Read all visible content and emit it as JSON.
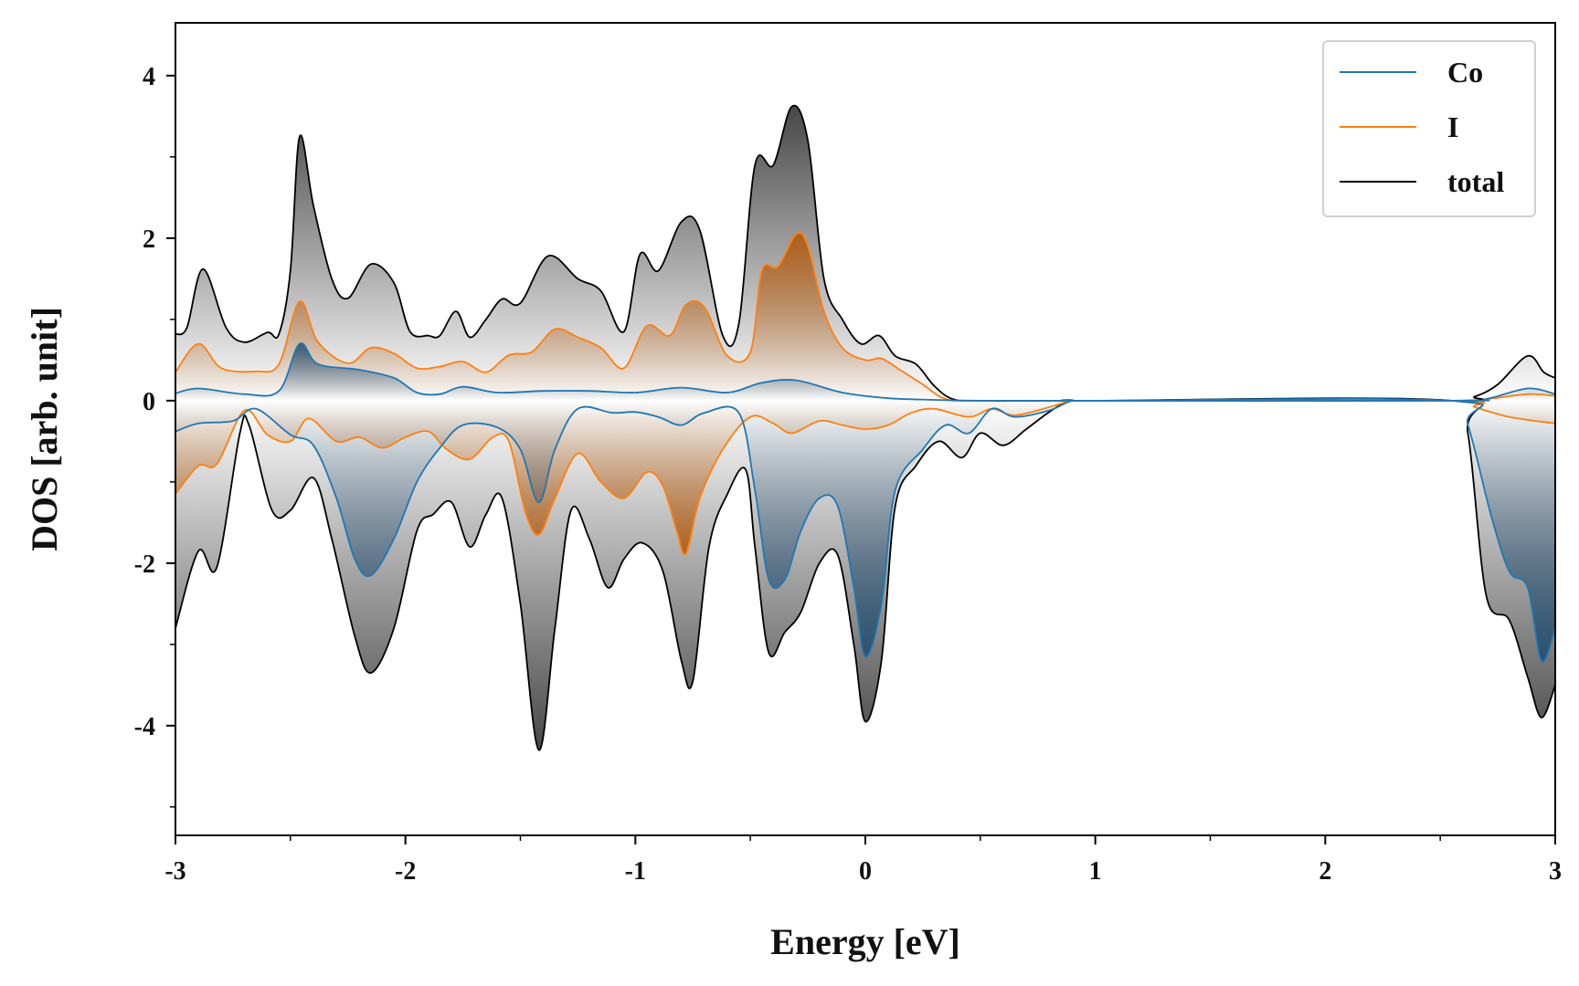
{
  "chart_data": {
    "type": "area",
    "title": "",
    "xlabel": "Energy [eV]",
    "ylabel": "DOS [arb. unit]",
    "xlim": [
      -3,
      3
    ],
    "ylim": [
      -5.35,
      4.65
    ],
    "xticks": [
      -3,
      -2,
      -1,
      0,
      1,
      2,
      3
    ],
    "xtick_labels": [
      "-3",
      "-2",
      "-1",
      "0",
      "1",
      "2",
      "3"
    ],
    "yticks": [
      -4,
      -2,
      0,
      2,
      4
    ],
    "ytick_labels": [
      "-4",
      "-2",
      "0",
      "2",
      "4"
    ],
    "grid": false,
    "legend": {
      "position": "top-right",
      "entries": [
        "Co",
        "I",
        "total"
      ]
    },
    "series": [
      {
        "name": "Co",
        "color": "#1f77b4",
        "fill_color": "#1e4a6e",
        "up": [
          [
            -3,
            0.09
          ],
          [
            -2.9,
            0.15
          ],
          [
            -2.7,
            0.08
          ],
          [
            -2.55,
            0.12
          ],
          [
            -2.46,
            0.7
          ],
          [
            -2.38,
            0.45
          ],
          [
            -2.2,
            0.38
          ],
          [
            -2.05,
            0.28
          ],
          [
            -1.95,
            0.1
          ],
          [
            -1.85,
            0.08
          ],
          [
            -1.75,
            0.17
          ],
          [
            -1.6,
            0.1
          ],
          [
            -1.4,
            0.12
          ],
          [
            -1.2,
            0.12
          ],
          [
            -1.0,
            0.1
          ],
          [
            -0.8,
            0.16
          ],
          [
            -0.6,
            0.1
          ],
          [
            -0.45,
            0.22
          ],
          [
            -0.3,
            0.25
          ],
          [
            -0.1,
            0.1
          ],
          [
            0.1,
            0.03
          ],
          [
            0.3,
            0.01
          ],
          [
            0.5,
            0.0
          ],
          [
            1.0,
            0.0
          ],
          [
            2.55,
            0.0
          ],
          [
            2.7,
            0.02
          ],
          [
            2.88,
            0.15
          ],
          [
            3,
            0.08
          ]
        ],
        "down": [
          [
            -3,
            -0.38
          ],
          [
            -2.9,
            -0.28
          ],
          [
            -2.75,
            -0.25
          ],
          [
            -2.65,
            -0.1
          ],
          [
            -2.5,
            -0.42
          ],
          [
            -2.4,
            -0.55
          ],
          [
            -2.3,
            -1.2
          ],
          [
            -2.22,
            -1.95
          ],
          [
            -2.15,
            -2.15
          ],
          [
            -2.05,
            -1.7
          ],
          [
            -1.95,
            -1.0
          ],
          [
            -1.85,
            -0.58
          ],
          [
            -1.75,
            -0.3
          ],
          [
            -1.6,
            -0.33
          ],
          [
            -1.5,
            -0.6
          ],
          [
            -1.42,
            -1.25
          ],
          [
            -1.35,
            -0.6
          ],
          [
            -1.25,
            -0.1
          ],
          [
            -1.1,
            -0.15
          ],
          [
            -1.0,
            -0.14
          ],
          [
            -0.9,
            -0.2
          ],
          [
            -0.8,
            -0.3
          ],
          [
            -0.7,
            -0.15
          ],
          [
            -0.55,
            -0.15
          ],
          [
            -0.48,
            -1.1
          ],
          [
            -0.42,
            -2.2
          ],
          [
            -0.35,
            -2.2
          ],
          [
            -0.28,
            -1.6
          ],
          [
            -0.2,
            -1.2
          ],
          [
            -0.12,
            -1.3
          ],
          [
            -0.05,
            -2.3
          ],
          [
            0.0,
            -3.15
          ],
          [
            0.07,
            -2.5
          ],
          [
            0.13,
            -1.1
          ],
          [
            0.25,
            -0.6
          ],
          [
            0.35,
            -0.3
          ],
          [
            0.45,
            -0.4
          ],
          [
            0.55,
            -0.1
          ],
          [
            0.65,
            -0.2
          ],
          [
            0.8,
            -0.12
          ],
          [
            0.9,
            0.0
          ],
          [
            1.0,
            0.0
          ],
          [
            2.55,
            0.0
          ],
          [
            2.62,
            -0.3
          ],
          [
            2.72,
            -1.4
          ],
          [
            2.8,
            -2.1
          ],
          [
            2.88,
            -2.3
          ],
          [
            2.94,
            -3.2
          ],
          [
            3,
            -2.8
          ]
        ]
      },
      {
        "name": "I",
        "color": "#ff7f0e",
        "fill_color": "#b35606",
        "up": [
          [
            -3,
            0.35
          ],
          [
            -2.9,
            0.7
          ],
          [
            -2.8,
            0.4
          ],
          [
            -2.65,
            0.36
          ],
          [
            -2.55,
            0.45
          ],
          [
            -2.46,
            1.22
          ],
          [
            -2.38,
            0.72
          ],
          [
            -2.25,
            0.46
          ],
          [
            -2.15,
            0.65
          ],
          [
            -2.05,
            0.58
          ],
          [
            -1.95,
            0.4
          ],
          [
            -1.85,
            0.42
          ],
          [
            -1.75,
            0.48
          ],
          [
            -1.65,
            0.35
          ],
          [
            -1.55,
            0.56
          ],
          [
            -1.45,
            0.6
          ],
          [
            -1.35,
            0.88
          ],
          [
            -1.25,
            0.78
          ],
          [
            -1.15,
            0.65
          ],
          [
            -1.05,
            0.4
          ],
          [
            -0.95,
            0.92
          ],
          [
            -0.85,
            0.8
          ],
          [
            -0.78,
            1.18
          ],
          [
            -0.7,
            1.15
          ],
          [
            -0.6,
            0.55
          ],
          [
            -0.5,
            0.6
          ],
          [
            -0.45,
            1.6
          ],
          [
            -0.38,
            1.65
          ],
          [
            -0.3,
            2.05
          ],
          [
            -0.25,
            1.9
          ],
          [
            -0.18,
            1.1
          ],
          [
            -0.1,
            0.65
          ],
          [
            0.0,
            0.5
          ],
          [
            0.07,
            0.52
          ],
          [
            0.15,
            0.38
          ],
          [
            0.25,
            0.2
          ],
          [
            0.35,
            0.02
          ],
          [
            0.5,
            0.0
          ],
          [
            1.0,
            0.0
          ],
          [
            2.55,
            0.0
          ],
          [
            2.7,
            0.02
          ],
          [
            2.88,
            0.08
          ],
          [
            3,
            0.06
          ]
        ],
        "down": [
          [
            -3,
            -1.15
          ],
          [
            -2.9,
            -0.8
          ],
          [
            -2.82,
            -0.78
          ],
          [
            -2.7,
            -0.12
          ],
          [
            -2.6,
            -0.42
          ],
          [
            -2.5,
            -0.5
          ],
          [
            -2.42,
            -0.22
          ],
          [
            -2.3,
            -0.5
          ],
          [
            -2.2,
            -0.45
          ],
          [
            -2.1,
            -0.58
          ],
          [
            -2.0,
            -0.45
          ],
          [
            -1.9,
            -0.38
          ],
          [
            -1.82,
            -0.6
          ],
          [
            -1.72,
            -0.72
          ],
          [
            -1.62,
            -0.45
          ],
          [
            -1.55,
            -0.5
          ],
          [
            -1.48,
            -1.35
          ],
          [
            -1.42,
            -1.65
          ],
          [
            -1.35,
            -1.2
          ],
          [
            -1.25,
            -0.65
          ],
          [
            -1.15,
            -1.0
          ],
          [
            -1.05,
            -1.2
          ],
          [
            -0.95,
            -0.88
          ],
          [
            -0.88,
            -1.05
          ],
          [
            -0.82,
            -1.6
          ],
          [
            -0.78,
            -1.88
          ],
          [
            -0.72,
            -1.2
          ],
          [
            -0.62,
            -0.6
          ],
          [
            -0.5,
            -0.2
          ],
          [
            -0.4,
            -0.28
          ],
          [
            -0.32,
            -0.4
          ],
          [
            -0.2,
            -0.25
          ],
          [
            -0.1,
            -0.3
          ],
          [
            0.0,
            -0.35
          ],
          [
            0.1,
            -0.3
          ],
          [
            0.2,
            -0.15
          ],
          [
            0.3,
            -0.1
          ],
          [
            0.45,
            -0.2
          ],
          [
            0.55,
            -0.1
          ],
          [
            0.65,
            -0.18
          ],
          [
            0.8,
            -0.08
          ],
          [
            0.9,
            0.0
          ],
          [
            1.0,
            0.0
          ],
          [
            2.55,
            0.0
          ],
          [
            2.65,
            -0.08
          ],
          [
            2.8,
            -0.2
          ],
          [
            3,
            -0.28
          ]
        ]
      },
      {
        "name": "total",
        "color": "#000000",
        "fill_color": "#333333",
        "up": [
          [
            -3,
            0.82
          ],
          [
            -2.95,
            0.9
          ],
          [
            -2.88,
            1.62
          ],
          [
            -2.78,
            0.9
          ],
          [
            -2.7,
            0.72
          ],
          [
            -2.6,
            0.84
          ],
          [
            -2.55,
            0.82
          ],
          [
            -2.5,
            1.6
          ],
          [
            -2.46,
            3.25
          ],
          [
            -2.4,
            2.4
          ],
          [
            -2.32,
            1.5
          ],
          [
            -2.25,
            1.26
          ],
          [
            -2.15,
            1.68
          ],
          [
            -2.05,
            1.45
          ],
          [
            -1.98,
            0.85
          ],
          [
            -1.9,
            0.8
          ],
          [
            -1.85,
            0.8
          ],
          [
            -1.78,
            1.1
          ],
          [
            -1.72,
            0.78
          ],
          [
            -1.65,
            1.0
          ],
          [
            -1.58,
            1.25
          ],
          [
            -1.5,
            1.2
          ],
          [
            -1.38,
            1.78
          ],
          [
            -1.25,
            1.5
          ],
          [
            -1.15,
            1.35
          ],
          [
            -1.05,
            0.85
          ],
          [
            -0.98,
            1.8
          ],
          [
            -0.9,
            1.6
          ],
          [
            -0.8,
            2.2
          ],
          [
            -0.72,
            2.1
          ],
          [
            -0.62,
            0.8
          ],
          [
            -0.55,
            0.95
          ],
          [
            -0.48,
            2.9
          ],
          [
            -0.4,
            2.9
          ],
          [
            -0.32,
            3.62
          ],
          [
            -0.25,
            3.2
          ],
          [
            -0.18,
            1.5
          ],
          [
            -0.1,
            1.0
          ],
          [
            -0.02,
            0.7
          ],
          [
            0.06,
            0.8
          ],
          [
            0.13,
            0.55
          ],
          [
            0.22,
            0.45
          ],
          [
            0.3,
            0.18
          ],
          [
            0.38,
            0.02
          ],
          [
            0.5,
            0.0
          ],
          [
            1.0,
            0.0
          ],
          [
            2.55,
            0.0
          ],
          [
            2.65,
            0.05
          ],
          [
            2.75,
            0.2
          ],
          [
            2.88,
            0.55
          ],
          [
            2.95,
            0.35
          ],
          [
            3,
            0.28
          ]
        ],
        "down": [
          [
            -3,
            -2.8
          ],
          [
            -2.9,
            -1.85
          ],
          [
            -2.82,
            -2.05
          ],
          [
            -2.72,
            -0.4
          ],
          [
            -2.68,
            -0.3
          ],
          [
            -2.58,
            -1.35
          ],
          [
            -2.5,
            -1.35
          ],
          [
            -2.4,
            -0.95
          ],
          [
            -2.32,
            -1.7
          ],
          [
            -2.22,
            -2.9
          ],
          [
            -2.15,
            -3.35
          ],
          [
            -2.05,
            -2.8
          ],
          [
            -1.95,
            -1.6
          ],
          [
            -1.88,
            -1.4
          ],
          [
            -1.8,
            -1.25
          ],
          [
            -1.72,
            -1.8
          ],
          [
            -1.65,
            -1.4
          ],
          [
            -1.58,
            -1.2
          ],
          [
            -1.5,
            -2.5
          ],
          [
            -1.42,
            -4.3
          ],
          [
            -1.35,
            -2.8
          ],
          [
            -1.28,
            -1.35
          ],
          [
            -1.2,
            -1.7
          ],
          [
            -1.12,
            -2.3
          ],
          [
            -1.05,
            -1.95
          ],
          [
            -0.97,
            -1.75
          ],
          [
            -0.88,
            -2.1
          ],
          [
            -0.8,
            -3.2
          ],
          [
            -0.75,
            -3.45
          ],
          [
            -0.68,
            -1.8
          ],
          [
            -0.6,
            -1.15
          ],
          [
            -0.52,
            -0.85
          ],
          [
            -0.48,
            -1.8
          ],
          [
            -0.42,
            -3.1
          ],
          [
            -0.35,
            -2.85
          ],
          [
            -0.28,
            -2.6
          ],
          [
            -0.2,
            -2.0
          ],
          [
            -0.12,
            -1.9
          ],
          [
            -0.05,
            -3.0
          ],
          [
            0.0,
            -3.95
          ],
          [
            0.07,
            -3.2
          ],
          [
            0.13,
            -1.3
          ],
          [
            0.22,
            -0.8
          ],
          [
            0.32,
            -0.5
          ],
          [
            0.42,
            -0.7
          ],
          [
            0.5,
            -0.4
          ],
          [
            0.6,
            -0.55
          ],
          [
            0.7,
            -0.35
          ],
          [
            0.82,
            -0.1
          ],
          [
            0.9,
            0.0
          ],
          [
            1.0,
            0.0
          ],
          [
            2.55,
            0.0
          ],
          [
            2.62,
            -0.4
          ],
          [
            2.7,
            -2.4
          ],
          [
            2.8,
            -2.7
          ],
          [
            2.88,
            -3.4
          ],
          [
            2.94,
            -3.9
          ],
          [
            3,
            -3.5
          ]
        ]
      }
    ]
  }
}
